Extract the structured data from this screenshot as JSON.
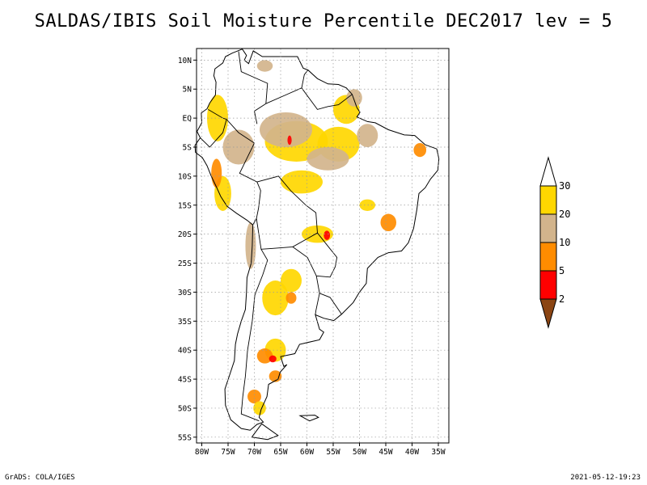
{
  "title": "SALDAS/IBIS Soil Moisture Percentile DEC2017 lev = 5",
  "footer": {
    "left": "GrADS: COLA/IGES",
    "right": "2021-05-12-19:23"
  },
  "map": {
    "lon_range": [
      -81,
      -33
    ],
    "lat_range": [
      -56,
      12
    ],
    "lat_ticks": [
      {
        "value": 10,
        "label": "10N"
      },
      {
        "value": 5,
        "label": "5N"
      },
      {
        "value": 0,
        "label": "EQ"
      },
      {
        "value": -5,
        "label": "5S"
      },
      {
        "value": -10,
        "label": "10S"
      },
      {
        "value": -15,
        "label": "15S"
      },
      {
        "value": -20,
        "label": "20S"
      },
      {
        "value": -25,
        "label": "25S"
      },
      {
        "value": -30,
        "label": "30S"
      },
      {
        "value": -35,
        "label": "35S"
      },
      {
        "value": -40,
        "label": "40S"
      },
      {
        "value": -45,
        "label": "45S"
      },
      {
        "value": -50,
        "label": "50S"
      },
      {
        "value": -55,
        "label": "55S"
      }
    ],
    "lon_ticks": [
      {
        "value": -80,
        "label": "80W"
      },
      {
        "value": -75,
        "label": "75W"
      },
      {
        "value": -70,
        "label": "70W"
      },
      {
        "value": -65,
        "label": "65W"
      },
      {
        "value": -60,
        "label": "60W"
      },
      {
        "value": -55,
        "label": "55W"
      },
      {
        "value": -50,
        "label": "50W"
      },
      {
        "value": -45,
        "label": "45W"
      },
      {
        "value": -40,
        "label": "40W"
      },
      {
        "value": -35,
        "label": "35W"
      }
    ],
    "gridlines": "dotted"
  },
  "legend": {
    "bins": [
      {
        "label": "30",
        "color": "#ffffff"
      },
      {
        "label": "20",
        "color": "#ffd700"
      },
      {
        "label": "10",
        "color": "#d2b48c"
      },
      {
        "label": "5",
        "color": "#ff8c00"
      },
      {
        "label": "2",
        "color": "#ff0000"
      },
      {
        "label": "",
        "color": "#8b4513"
      }
    ]
  },
  "colors": {
    "pct_20_30": "#ffd700",
    "pct_10_20": "#d2b48c",
    "pct_5_10": "#ff8c00",
    "pct_2_5": "#ff0000",
    "pct_lt_2": "#8b4513"
  }
}
